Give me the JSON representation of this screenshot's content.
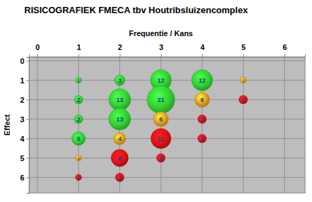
{
  "chart_data": {
    "type": "bubble",
    "title": "RISICOGRAFIEK FMECA tbv Houtribsluizencomplex",
    "x_label": "Frequentie / Kans",
    "y_label": "Effect",
    "x": [
      1,
      2,
      3,
      4,
      5,
      1,
      2,
      3,
      4,
      5,
      1,
      2,
      3,
      4,
      1,
      2,
      3,
      4,
      1,
      2,
      3,
      1,
      2
    ],
    "values": [
      1,
      1,
      1,
      1,
      1,
      2,
      2,
      2,
      2,
      2,
      3,
      3,
      3,
      3,
      4,
      4,
      4,
      4,
      5,
      5,
      5,
      6,
      6
    ],
    "sizes": [
      1,
      3,
      12,
      12,
      1,
      2,
      13,
      21,
      6,
      2,
      2,
      13,
      6,
      2,
      5,
      4,
      11,
      2,
      1,
      8,
      2,
      1,
      2
    ],
    "colors": [
      "#33d633",
      "#33d633",
      "#33d633",
      "#33d633",
      "#e8a21c",
      "#33d633",
      "#33d633",
      "#33d633",
      "#e8a21c",
      "#e01414",
      "#33d633",
      "#33d633",
      "#e8a21c",
      "#e01414",
      "#33d633",
      "#e8a21c",
      "#e01414",
      "#e01414",
      "#e8a21c",
      "#e01414",
      "#e01414",
      "#e01414",
      "#e01414"
    ],
    "xlim": [
      -0.2,
      6.5
    ],
    "ylim": [
      6.8,
      -0.2
    ],
    "xticks": [
      0,
      1,
      2,
      3,
      4,
      5,
      6
    ],
    "yticks": [
      0,
      1,
      2,
      3,
      4,
      5,
      6
    ],
    "grid": true,
    "data_labels": true
  }
}
